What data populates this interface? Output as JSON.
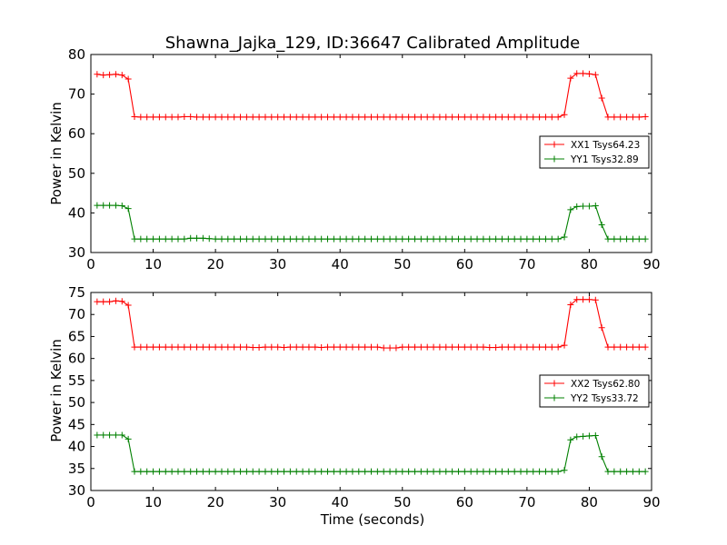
{
  "colors": {
    "xx": "#ff0000",
    "yy": "#008000",
    "axis": "#000000",
    "background": "#ffffff"
  },
  "chart_data": [
    {
      "type": "line",
      "title": "Shawna_Jajka_129, ID:36647 Calibrated Amplitude",
      "xlabel": "",
      "ylabel": "Power in Kelvin",
      "xlim": [
        0,
        90
      ],
      "ylim": [
        30,
        80
      ],
      "xticks": [
        "0",
        "10",
        "20",
        "30",
        "40",
        "50",
        "60",
        "70",
        "80",
        "90"
      ],
      "yticks": [
        "30",
        "40",
        "50",
        "60",
        "70",
        "80"
      ],
      "legend_position": "right",
      "grid": false,
      "x": [
        1,
        2,
        3,
        4,
        5,
        6,
        7,
        8,
        9,
        10,
        11,
        12,
        13,
        14,
        15,
        16,
        17,
        18,
        19,
        20,
        21,
        22,
        23,
        24,
        25,
        26,
        27,
        28,
        29,
        30,
        31,
        32,
        33,
        34,
        35,
        36,
        37,
        38,
        39,
        40,
        41,
        42,
        43,
        44,
        45,
        46,
        47,
        48,
        49,
        50,
        51,
        52,
        53,
        54,
        55,
        56,
        57,
        58,
        59,
        60,
        61,
        62,
        63,
        64,
        65,
        66,
        67,
        68,
        69,
        70,
        71,
        72,
        73,
        74,
        75,
        76,
        77,
        78,
        79,
        80,
        81,
        82,
        83,
        84,
        85,
        86,
        87,
        88,
        89
      ],
      "series": [
        {
          "name": "XX1 Tsys64.23",
          "color": "#ff0000",
          "values": [
            75.0,
            74.8,
            74.9,
            75.0,
            74.8,
            73.8,
            64.3,
            64.2,
            64.2,
            64.2,
            64.2,
            64.2,
            64.2,
            64.2,
            64.3,
            64.3,
            64.2,
            64.2,
            64.2,
            64.2,
            64.2,
            64.2,
            64.2,
            64.2,
            64.2,
            64.2,
            64.2,
            64.2,
            64.2,
            64.2,
            64.2,
            64.2,
            64.2,
            64.2,
            64.2,
            64.2,
            64.2,
            64.2,
            64.2,
            64.2,
            64.2,
            64.2,
            64.2,
            64.2,
            64.2,
            64.2,
            64.2,
            64.2,
            64.2,
            64.2,
            64.2,
            64.2,
            64.2,
            64.2,
            64.2,
            64.2,
            64.2,
            64.2,
            64.2,
            64.2,
            64.2,
            64.2,
            64.2,
            64.2,
            64.2,
            64.2,
            64.2,
            64.2,
            64.2,
            64.2,
            64.2,
            64.2,
            64.2,
            64.2,
            64.2,
            64.8,
            74.0,
            75.2,
            75.2,
            75.1,
            74.9,
            69.0,
            64.2,
            64.2,
            64.2,
            64.2,
            64.2,
            64.2,
            64.3
          ]
        },
        {
          "name": "YY1 Tsys32.89",
          "color": "#008000",
          "values": [
            41.9,
            41.9,
            41.9,
            41.9,
            41.8,
            41.1,
            33.4,
            33.4,
            33.4,
            33.4,
            33.4,
            33.4,
            33.4,
            33.4,
            33.4,
            33.6,
            33.6,
            33.6,
            33.5,
            33.4,
            33.4,
            33.4,
            33.4,
            33.4,
            33.4,
            33.4,
            33.4,
            33.4,
            33.4,
            33.4,
            33.4,
            33.4,
            33.4,
            33.4,
            33.4,
            33.4,
            33.4,
            33.4,
            33.4,
            33.4,
            33.4,
            33.4,
            33.4,
            33.4,
            33.4,
            33.4,
            33.4,
            33.4,
            33.4,
            33.4,
            33.4,
            33.4,
            33.4,
            33.4,
            33.4,
            33.4,
            33.4,
            33.4,
            33.4,
            33.4,
            33.4,
            33.4,
            33.4,
            33.4,
            33.4,
            33.4,
            33.4,
            33.4,
            33.4,
            33.4,
            33.4,
            33.4,
            33.4,
            33.4,
            33.4,
            33.9,
            40.8,
            41.6,
            41.7,
            41.7,
            41.8,
            37.0,
            33.4,
            33.4,
            33.4,
            33.4,
            33.4,
            33.4,
            33.4
          ]
        }
      ]
    },
    {
      "type": "line",
      "title": "",
      "xlabel": "Time (seconds)",
      "ylabel": "Power in Kelvin",
      "xlim": [
        0,
        90
      ],
      "ylim": [
        30,
        75
      ],
      "xticks": [
        "0",
        "10",
        "20",
        "30",
        "40",
        "50",
        "60",
        "70",
        "80",
        "90"
      ],
      "yticks": [
        "30",
        "35",
        "40",
        "45",
        "50",
        "55",
        "60",
        "65",
        "70",
        "75"
      ],
      "legend_position": "right",
      "grid": false,
      "x": [
        1,
        2,
        3,
        4,
        5,
        6,
        7,
        8,
        9,
        10,
        11,
        12,
        13,
        14,
        15,
        16,
        17,
        18,
        19,
        20,
        21,
        22,
        23,
        24,
        25,
        26,
        27,
        28,
        29,
        30,
        31,
        32,
        33,
        34,
        35,
        36,
        37,
        38,
        39,
        40,
        41,
        42,
        43,
        44,
        45,
        46,
        47,
        48,
        49,
        50,
        51,
        52,
        53,
        54,
        55,
        56,
        57,
        58,
        59,
        60,
        61,
        62,
        63,
        64,
        65,
        66,
        67,
        68,
        69,
        70,
        71,
        72,
        73,
        74,
        75,
        76,
        77,
        78,
        79,
        80,
        81,
        82,
        83,
        84,
        85,
        86,
        87,
        88,
        89
      ],
      "series": [
        {
          "name": "XX2 Tsys62.80",
          "color": "#ff0000",
          "values": [
            72.9,
            72.9,
            72.9,
            73.1,
            73.0,
            72.1,
            62.6,
            62.6,
            62.6,
            62.6,
            62.6,
            62.6,
            62.6,
            62.6,
            62.6,
            62.6,
            62.6,
            62.6,
            62.6,
            62.6,
            62.6,
            62.6,
            62.6,
            62.6,
            62.6,
            62.5,
            62.5,
            62.6,
            62.6,
            62.6,
            62.5,
            62.6,
            62.6,
            62.6,
            62.6,
            62.6,
            62.5,
            62.6,
            62.6,
            62.6,
            62.6,
            62.6,
            62.6,
            62.6,
            62.6,
            62.6,
            62.4,
            62.4,
            62.4,
            62.6,
            62.6,
            62.6,
            62.6,
            62.6,
            62.6,
            62.6,
            62.6,
            62.6,
            62.6,
            62.6,
            62.6,
            62.6,
            62.6,
            62.5,
            62.5,
            62.6,
            62.6,
            62.6,
            62.6,
            62.6,
            62.6,
            62.6,
            62.6,
            62.6,
            62.6,
            63.0,
            72.2,
            73.4,
            73.4,
            73.4,
            73.3,
            67.0,
            62.6,
            62.6,
            62.6,
            62.6,
            62.6,
            62.6,
            62.6
          ]
        },
        {
          "name": "YY2 Tsys33.72",
          "color": "#008000",
          "values": [
            42.6,
            42.6,
            42.6,
            42.6,
            42.6,
            41.7,
            34.3,
            34.3,
            34.3,
            34.3,
            34.3,
            34.3,
            34.3,
            34.3,
            34.3,
            34.3,
            34.3,
            34.3,
            34.3,
            34.3,
            34.3,
            34.3,
            34.3,
            34.3,
            34.3,
            34.3,
            34.3,
            34.3,
            34.3,
            34.3,
            34.3,
            34.3,
            34.3,
            34.3,
            34.3,
            34.3,
            34.3,
            34.3,
            34.3,
            34.3,
            34.3,
            34.3,
            34.3,
            34.3,
            34.3,
            34.3,
            34.3,
            34.3,
            34.3,
            34.3,
            34.3,
            34.3,
            34.3,
            34.3,
            34.3,
            34.3,
            34.3,
            34.3,
            34.3,
            34.3,
            34.3,
            34.3,
            34.3,
            34.3,
            34.3,
            34.3,
            34.3,
            34.3,
            34.3,
            34.3,
            34.3,
            34.3,
            34.3,
            34.3,
            34.3,
            34.6,
            41.5,
            42.2,
            42.3,
            42.4,
            42.5,
            37.7,
            34.3,
            34.3,
            34.3,
            34.3,
            34.3,
            34.3,
            34.3
          ]
        }
      ]
    }
  ]
}
